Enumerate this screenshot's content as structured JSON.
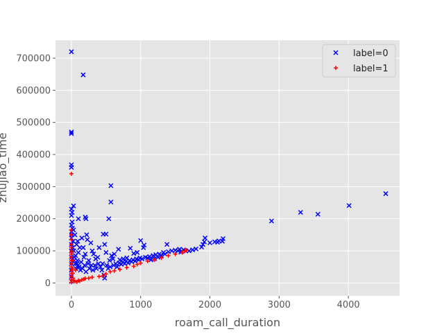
{
  "chart_data": {
    "type": "scatter",
    "title": "",
    "xlabel": "roam_call_duration",
    "ylabel": "zhujiao_time",
    "xlim": [
      -230,
      4740
    ],
    "ylim": [
      -40000,
      756000
    ],
    "x_ticks": [
      0,
      1000,
      2000,
      3000,
      4000
    ],
    "y_ticks": [
      0,
      100000,
      200000,
      300000,
      400000,
      500000,
      600000,
      700000
    ],
    "grid": true,
    "background": "#e5e5e5",
    "legend": {
      "placement": "top-right"
    },
    "series": [
      {
        "name": "label=0",
        "marker": "x",
        "color": "#0000ff",
        "points": [
          [
            0,
            720000
          ],
          [
            170,
            648000
          ],
          [
            0,
            470000
          ],
          [
            0,
            465000
          ],
          [
            0,
            368000
          ],
          [
            0,
            360000
          ],
          [
            570,
            303000
          ],
          [
            570,
            252000
          ],
          [
            540,
            200000
          ],
          [
            30,
            240000
          ],
          [
            0,
            230000
          ],
          [
            10,
            220000
          ],
          [
            200,
            205000
          ],
          [
            210,
            200000
          ],
          [
            100,
            200000
          ],
          [
            460,
            152000
          ],
          [
            500,
            152000
          ],
          [
            4540,
            278000
          ],
          [
            4010,
            241000
          ],
          [
            3560,
            214000
          ],
          [
            3310,
            220000
          ],
          [
            2890,
            193000
          ],
          [
            2190,
            138000
          ],
          [
            2180,
            130000
          ],
          [
            2110,
            127000
          ],
          [
            2130,
            131000
          ],
          [
            1930,
            140000
          ],
          [
            1920,
            128000
          ],
          [
            1900,
            120000
          ],
          [
            1880,
            112000
          ],
          [
            1650,
            100000
          ],
          [
            1620,
            103000
          ],
          [
            1580,
            96000
          ],
          [
            1540,
            100000
          ],
          [
            1380,
            120000
          ],
          [
            1350,
            90000
          ],
          [
            1300,
            85000
          ],
          [
            1250,
            80000
          ],
          [
            1200,
            75000
          ],
          [
            1150,
            72000
          ],
          [
            1050,
            118000
          ],
          [
            1040,
            110000
          ],
          [
            1000,
            132000
          ],
          [
            950,
            95000
          ],
          [
            900,
            92000
          ],
          [
            850,
            108000
          ],
          [
            800,
            78000
          ],
          [
            750,
            75000
          ],
          [
            700,
            72000
          ],
          [
            680,
            105000
          ],
          [
            620,
            90000
          ],
          [
            600,
            75000
          ],
          [
            550,
            70000
          ],
          [
            500,
            95000
          ],
          [
            480,
            120000
          ],
          [
            450,
            60000
          ],
          [
            400,
            110000
          ],
          [
            380,
            80000
          ],
          [
            350,
            75000
          ],
          [
            320,
            90000
          ],
          [
            300,
            100000
          ],
          [
            280,
            125000
          ],
          [
            250,
            70000
          ],
          [
            230,
            135000
          ],
          [
            220,
            150000
          ],
          [
            200,
            90000
          ],
          [
            180,
            80000
          ],
          [
            150,
            140000
          ],
          [
            120,
            110000
          ],
          [
            100,
            95000
          ],
          [
            90,
            130000
          ],
          [
            80,
            60000
          ],
          [
            60,
            85000
          ],
          [
            50,
            150000
          ],
          [
            40,
            70000
          ],
          [
            30,
            165000
          ],
          [
            20,
            110000
          ],
          [
            10,
            190000
          ],
          [
            0,
            210000
          ],
          [
            0,
            180000
          ],
          [
            0,
            160000
          ],
          [
            0,
            140000
          ],
          [
            0,
            120000
          ],
          [
            0,
            100000
          ],
          [
            0,
            80000
          ],
          [
            0,
            60000
          ],
          [
            0,
            40000
          ],
          [
            0,
            20000
          ],
          [
            0,
            5000
          ],
          [
            5,
            150000
          ],
          [
            15,
            170000
          ],
          [
            25,
            130000
          ],
          [
            35,
            100000
          ],
          [
            45,
            80000
          ],
          [
            55,
            60000
          ],
          [
            65,
            45000
          ],
          [
            75,
            120000
          ],
          [
            85,
            70000
          ],
          [
            95,
            55000
          ],
          [
            110,
            50000
          ],
          [
            130,
            40000
          ],
          [
            140,
            65000
          ],
          [
            160,
            45000
          ],
          [
            170,
            110000
          ],
          [
            190,
            55000
          ],
          [
            210,
            35000
          ],
          [
            240,
            60000
          ],
          [
            260,
            45000
          ],
          [
            290,
            55000
          ],
          [
            310,
            40000
          ],
          [
            340,
            55000
          ],
          [
            360,
            45000
          ],
          [
            390,
            60000
          ],
          [
            420,
            50000
          ],
          [
            440,
            40000
          ],
          [
            470,
            25000
          ],
          [
            480,
            15000
          ],
          [
            510,
            55000
          ],
          [
            530,
            45000
          ],
          [
            560,
            50000
          ],
          [
            580,
            85000
          ],
          [
            610,
            55000
          ],
          [
            640,
            60000
          ],
          [
            660,
            50000
          ],
          [
            690,
            62000
          ],
          [
            720,
            58000
          ],
          [
            740,
            65000
          ],
          [
            770,
            60000
          ],
          [
            790,
            68000
          ],
          [
            820,
            62000
          ],
          [
            840,
            70000
          ],
          [
            870,
            66000
          ],
          [
            890,
            72000
          ],
          [
            920,
            68000
          ],
          [
            940,
            75000
          ],
          [
            970,
            72000
          ],
          [
            990,
            78000
          ],
          [
            1020,
            75000
          ],
          [
            1070,
            80000
          ],
          [
            1100,
            78000
          ],
          [
            1130,
            82000
          ],
          [
            1180,
            85000
          ],
          [
            1220,
            88000
          ],
          [
            1270,
            90000
          ],
          [
            1330,
            95000
          ],
          [
            1400,
            97000
          ],
          [
            1450,
            100000
          ],
          [
            1500,
            102000
          ],
          [
            1560,
            105000
          ],
          [
            1600,
            98000
          ],
          [
            1700,
            100000
          ],
          [
            1750,
            103000
          ],
          [
            1800,
            106000
          ],
          [
            2000,
            125000
          ],
          [
            2070,
            128000
          ]
        ]
      },
      {
        "name": "label=1",
        "marker": "+",
        "color": "#ff0000",
        "points": [
          [
            0,
            340000
          ],
          [
            0,
            165000
          ],
          [
            0,
            150000
          ],
          [
            0,
            135000
          ],
          [
            0,
            120000
          ],
          [
            0,
            110000
          ],
          [
            0,
            100000
          ],
          [
            0,
            90000
          ],
          [
            0,
            80000
          ],
          [
            0,
            70000
          ],
          [
            0,
            60000
          ],
          [
            0,
            50000
          ],
          [
            0,
            40000
          ],
          [
            0,
            30000
          ],
          [
            0,
            20000
          ],
          [
            0,
            10000
          ],
          [
            0,
            2000
          ],
          [
            5,
            95000
          ],
          [
            10,
            70000
          ],
          [
            15,
            45000
          ],
          [
            20,
            30000
          ],
          [
            25,
            15000
          ],
          [
            30,
            8000
          ],
          [
            50,
            5000
          ],
          [
            60,
            40000
          ],
          [
            80,
            3000
          ],
          [
            100,
            8000
          ],
          [
            120,
            6000
          ],
          [
            150,
            10000
          ],
          [
            180,
            12000
          ],
          [
            200,
            14000
          ],
          [
            250,
            15000
          ],
          [
            300,
            18000
          ],
          [
            400,
            20000
          ],
          [
            450,
            22000
          ],
          [
            500,
            28000
          ],
          [
            560,
            35000
          ],
          [
            620,
            38000
          ],
          [
            700,
            42000
          ],
          [
            800,
            48000
          ],
          [
            900,
            52000
          ],
          [
            950,
            58000
          ],
          [
            1000,
            62000
          ],
          [
            1100,
            68000
          ],
          [
            1200,
            72000
          ],
          [
            1300,
            78000
          ],
          [
            1400,
            85000
          ],
          [
            1500,
            90000
          ],
          [
            1600,
            95000
          ],
          [
            1640,
            100000
          ],
          [
            1660,
            102000
          ]
        ]
      }
    ]
  }
}
